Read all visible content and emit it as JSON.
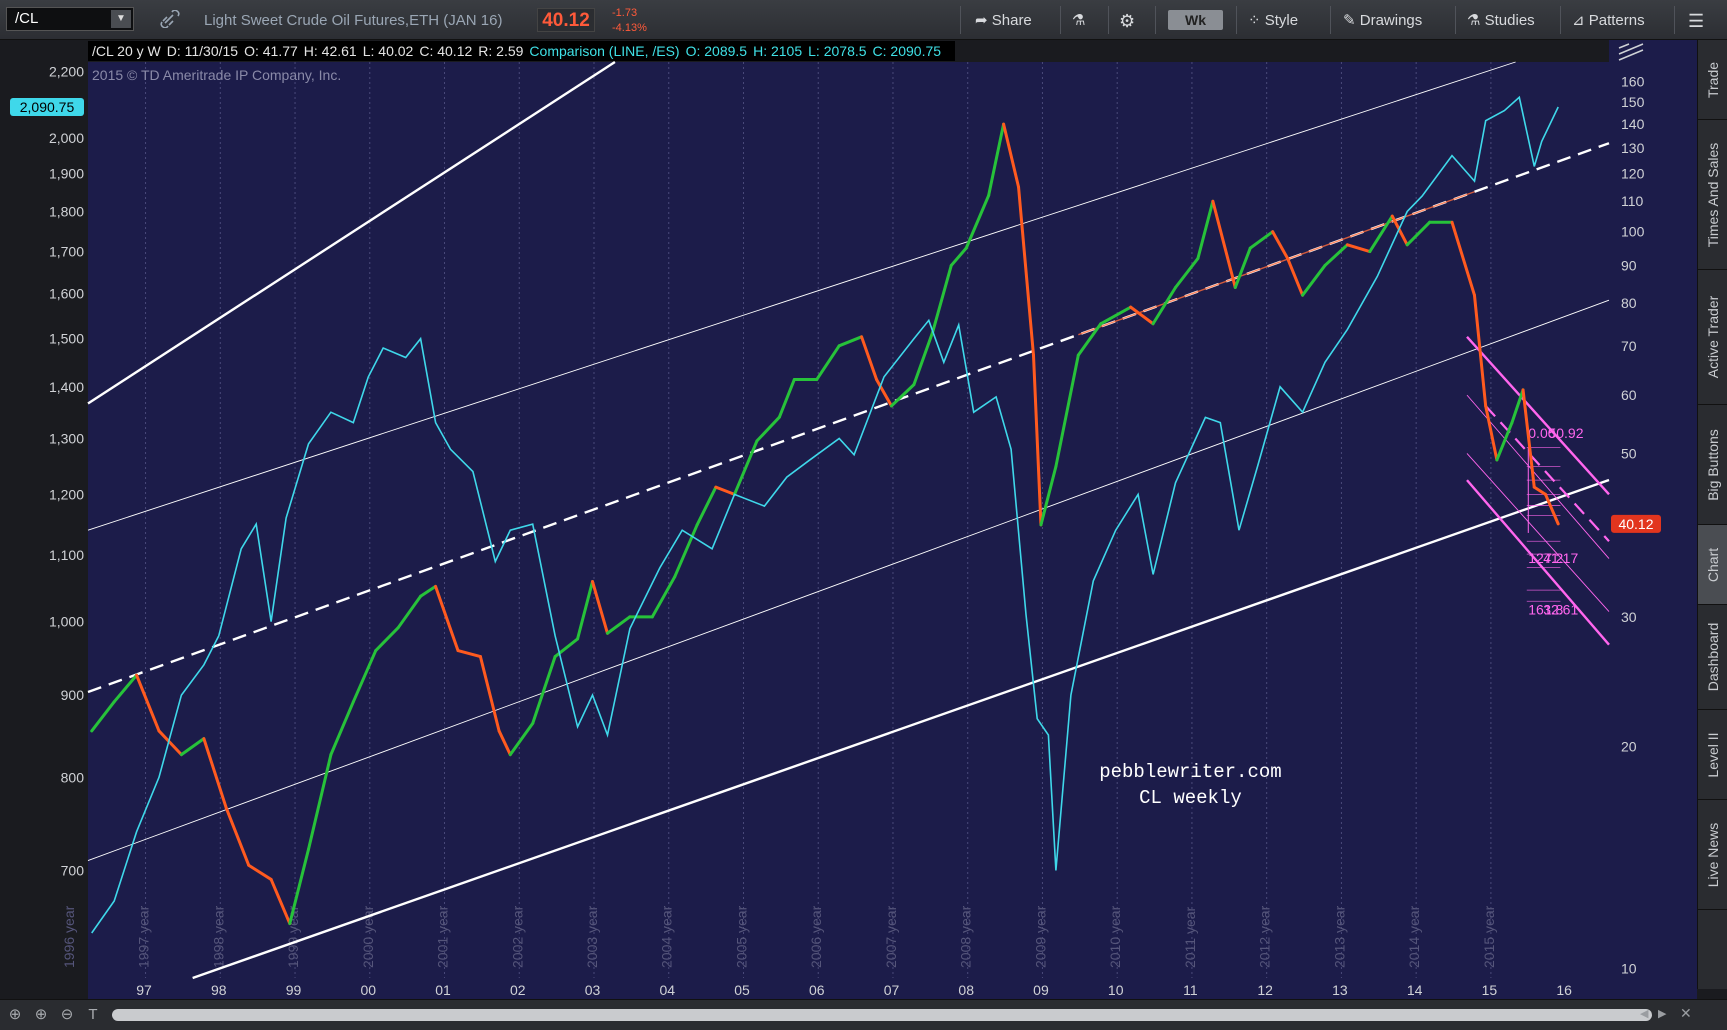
{
  "toolbar": {
    "symbol": "/CL",
    "description": "Light Sweet Crude Oil Futures,ETH (JAN 16)",
    "last": "40.12",
    "change": "-1.73",
    "change_pct": "-4.13%",
    "share": "Share",
    "period": "Wk",
    "style": "Style",
    "drawings": "Drawings",
    "studies": "Studies",
    "patterns": "Patterns"
  },
  "info": {
    "symbol_period": "/CL 20 y W",
    "date": "D: 11/30/15",
    "open": "O: 41.77",
    "high": "H: 42.61",
    "low": "L: 40.02",
    "close": "C: 40.12",
    "range": "R: 2.59",
    "comparison": "Comparison (LINE, /ES)",
    "cmp_open": "O: 2089.5",
    "cmp_high": "H: 2105",
    "cmp_low": "L: 2078.5",
    "cmp_close": "C: 2090.75"
  },
  "copyright": "2015 © TD Ameritrade IP Company, Inc.",
  "watermark": [
    "pebblewriter.com",
    "CL weekly"
  ],
  "side_tabs": [
    "Trade",
    "Times And Sales",
    "Active Trader",
    "Big Buttons",
    "Chart",
    "Dashboard",
    "Level II",
    "Live News"
  ],
  "active_tab": "Chart",
  "chart_data": {
    "type": "line",
    "scale": "log",
    "colors": {
      "background": "#1c1c4a",
      "up_bar": "#27c23a",
      "down_bar": "#ff5a1f",
      "comparison": "#3fd8ea",
      "channel": "#ffffff",
      "fib": "#ff66ee",
      "last_price_tag": "#e2351e"
    },
    "x_axis": {
      "ticks": [
        "97",
        "98",
        "99",
        "00",
        "01",
        "02",
        "03",
        "04",
        "05",
        "06",
        "07",
        "08",
        "09",
        "10",
        "11",
        "12",
        "13",
        "14",
        "15",
        "16"
      ],
      "year_markers": [
        "1996 year",
        "1997 year",
        "1998 year",
        "1999 year",
        "2000 year",
        "2001 year",
        "2002 year",
        "2003 year",
        "2004 year",
        "2005 year",
        "2006 year",
        "2007 year",
        "2008 year",
        "2009 year",
        "2010 year",
        "2011 year",
        "2012 year",
        "2013 year",
        "2014 year",
        "2015 year"
      ],
      "range": [
        1996.25,
        2016.6
      ]
    },
    "left_axis": {
      "label": "/ES comparison",
      "ticks": [
        700,
        800,
        900,
        1000,
        1100,
        1200,
        1300,
        1400,
        1500,
        1600,
        1700,
        1800,
        1900,
        2000,
        2200
      ],
      "tick_labels": [
        "700",
        "800",
        "900",
        "1,000",
        "1,100",
        "1,200",
        "1,300",
        "1,400",
        "1,500",
        "1,600",
        "1,700",
        "1,800",
        "1,900",
        "2,000",
        "2,200"
      ],
      "range": [
        600,
        2230
      ],
      "last_label": "2,090.75",
      "last_value": 2090.75
    },
    "right_axis": {
      "label": "/CL",
      "ticks": [
        10,
        20,
        30,
        40,
        50,
        60,
        70,
        80,
        90,
        100,
        110,
        120,
        130,
        140,
        150,
        160
      ],
      "range": [
        9.7,
        170
      ],
      "last_label": "40.12",
      "last_value": 40.12
    },
    "series": [
      {
        "name": "/CL",
        "axis": "right",
        "x": [
          1996.3,
          1996.6,
          1996.9,
          1997.2,
          1997.5,
          1997.8,
          1998.1,
          1998.4,
          1998.7,
          1998.95,
          1999.2,
          1999.5,
          1999.8,
          2000.1,
          2000.4,
          2000.7,
          2000.9,
          2001.2,
          2001.5,
          2001.75,
          2001.9,
          2002.2,
          2002.5,
          2002.8,
          2003.0,
          2003.2,
          2003.5,
          2003.8,
          2004.1,
          2004.4,
          2004.65,
          2004.9,
          2005.2,
          2005.5,
          2005.7,
          2006.0,
          2006.3,
          2006.6,
          2006.8,
          2007.0,
          2007.3,
          2007.55,
          2007.8,
          2008.0,
          2008.3,
          2008.5,
          2008.7,
          2008.9,
          2009.0,
          2009.2,
          2009.5,
          2009.8,
          2010.2,
          2010.5,
          2010.8,
          2011.1,
          2011.3,
          2011.6,
          2011.8,
          2012.1,
          2012.3,
          2012.5,
          2012.8,
          2013.1,
          2013.4,
          2013.7,
          2013.9,
          2014.2,
          2014.5,
          2014.8,
          2014.95,
          2015.1,
          2015.3,
          2015.45,
          2015.6,
          2015.75,
          2015.92
        ],
        "values": [
          21,
          23,
          25,
          21,
          19.5,
          20.5,
          16.5,
          13.8,
          13.2,
          11.5,
          14.5,
          19.5,
          23,
          27,
          29,
          32,
          33,
          27,
          26.5,
          21,
          19.5,
          21.5,
          26.5,
          28,
          33.5,
          28.5,
          30,
          30,
          34,
          40,
          45,
          44,
          52,
          56,
          63,
          63,
          70,
          72,
          63,
          58,
          62,
          73,
          90,
          95,
          112,
          140,
          115,
          68,
          40,
          48,
          68,
          75,
          79,
          75,
          84,
          92,
          110,
          84,
          95,
          100,
          92,
          82,
          90,
          96,
          94,
          105,
          96,
          103,
          103,
          82,
          58,
          49,
          55,
          61,
          45,
          44,
          40.12
        ]
      },
      {
        "name": "/ES",
        "axis": "left",
        "x": [
          1996.3,
          1996.6,
          1996.9,
          1997.2,
          1997.5,
          1997.8,
          1998.0,
          1998.3,
          1998.5,
          1998.7,
          1998.9,
          1999.2,
          1999.5,
          1999.8,
          2000.0,
          2000.2,
          2000.5,
          2000.7,
          2000.9,
          2001.1,
          2001.4,
          2001.7,
          2001.9,
          2002.2,
          2002.5,
          2002.8,
          2003.0,
          2003.2,
          2003.5,
          2003.9,
          2004.2,
          2004.6,
          2004.9,
          2005.3,
          2005.6,
          2005.9,
          2006.3,
          2006.5,
          2006.9,
          2007.3,
          2007.5,
          2007.7,
          2007.9,
          2008.1,
          2008.4,
          2008.6,
          2008.8,
          2008.95,
          2009.1,
          2009.2,
          2009.4,
          2009.7,
          2010.0,
          2010.3,
          2010.5,
          2010.8,
          2011.2,
          2011.4,
          2011.65,
          2011.9,
          2012.2,
          2012.5,
          2012.8,
          2013.1,
          2013.5,
          2013.9,
          2014.1,
          2014.5,
          2014.8,
          2014.95,
          2015.2,
          2015.4,
          2015.6,
          2015.7,
          2015.92
        ],
        "values": [
          640,
          670,
          740,
          800,
          900,
          940,
          980,
          1110,
          1150,
          1000,
          1160,
          1290,
          1350,
          1330,
          1420,
          1480,
          1460,
          1500,
          1330,
          1280,
          1240,
          1090,
          1140,
          1150,
          980,
          860,
          900,
          850,
          990,
          1080,
          1140,
          1110,
          1200,
          1180,
          1230,
          1260,
          1300,
          1270,
          1420,
          1500,
          1540,
          1450,
          1530,
          1350,
          1380,
          1280,
          1010,
          870,
          850,
          700,
          900,
          1060,
          1140,
          1200,
          1070,
          1220,
          1340,
          1330,
          1140,
          1250,
          1400,
          1350,
          1450,
          1520,
          1640,
          1800,
          1840,
          1950,
          1880,
          2050,
          2080,
          2120,
          1920,
          1990,
          2090.75
        ]
      }
    ],
    "channel_lines": [
      {
        "style": "solid-thick",
        "from": [
          1996.25,
          1367
        ],
        "to": [
          2003.3,
          2230
        ]
      },
      {
        "style": "solid-thin",
        "from": [
          1996.25,
          1140
        ],
        "to": [
          2015.35,
          2230
        ]
      },
      {
        "style": "dashed",
        "from": [
          1996.25,
          904
        ],
        "to": [
          2016.6,
          1985
        ]
      },
      {
        "style": "solid-thin",
        "from": [
          1996.25,
          710
        ],
        "to": [
          2016.6,
          1585
        ]
      },
      {
        "style": "solid-thick",
        "from": [
          1997.65,
          600
        ],
        "to": [
          2016.6,
          1225
        ]
      }
    ],
    "fib_labels": [
      "0.00",
      "50.92",
      "127.2",
      "41.17",
      "161.8",
      "32.61"
    ],
    "annotations": [
      "pebblewriter.com",
      "CL weekly"
    ]
  }
}
